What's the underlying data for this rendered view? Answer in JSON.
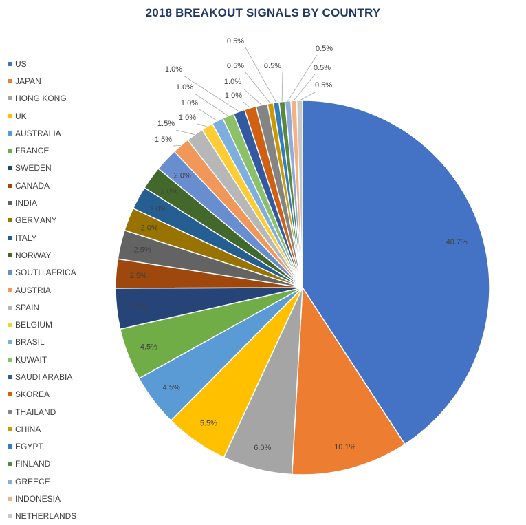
{
  "chart_data": {
    "type": "pie",
    "title": "2018 BREAKOUT SIGNALS BY COUNTRY",
    "legend_position": "left",
    "series": [
      {
        "name": "",
        "slices": [
          {
            "label": "US",
            "value": 40.7,
            "data_label": "40.7%",
            "color": "#4472c4"
          },
          {
            "label": "JAPAN",
            "value": 10.1,
            "data_label": "10.1%",
            "color": "#ed7d31"
          },
          {
            "label": "HONG KONG",
            "value": 6.0,
            "data_label": "6.0%",
            "color": "#a5a5a5"
          },
          {
            "label": "UK",
            "value": 5.5,
            "data_label": "5.5%",
            "color": "#ffc000"
          },
          {
            "label": "AUSTRALIA",
            "value": 4.5,
            "data_label": "4.5%",
            "color": "#5b9bd5"
          },
          {
            "label": "FRANCE",
            "value": 4.5,
            "data_label": "4.5%",
            "color": "#70ad47"
          },
          {
            "label": "SWEDEN",
            "value": 3.5,
            "data_label": "3.5%",
            "color": "#264478"
          },
          {
            "label": "CANADA",
            "value": 2.5,
            "data_label": "2.5%",
            "color": "#9e480e"
          },
          {
            "label": "INDIA",
            "value": 2.5,
            "data_label": "2.5%",
            "color": "#636363"
          },
          {
            "label": "GERMANY",
            "value": 2.0,
            "data_label": "2.0%",
            "color": "#997300"
          },
          {
            "label": "ITALY",
            "value": 2.0,
            "data_label": "2.0%",
            "color": "#255e91"
          },
          {
            "label": "NORWAY",
            "value": 2.0,
            "data_label": "2.0%",
            "color": "#43682b"
          },
          {
            "label": "SOUTH AFRICA",
            "value": 2.0,
            "data_label": "2.0%",
            "color": "#698ed0"
          },
          {
            "label": "AUSTRIA",
            "value": 1.5,
            "data_label": "1.5%",
            "color": "#f1975a"
          },
          {
            "label": "SPAIN",
            "value": 1.5,
            "data_label": "1.5%",
            "color": "#b7b7b7"
          },
          {
            "label": "BELGIUM",
            "value": 1.0,
            "data_label": "1.0%",
            "color": "#ffcd33"
          },
          {
            "label": "BRASIL",
            "value": 1.0,
            "data_label": "1.0%",
            "color": "#7cafdd"
          },
          {
            "label": "KUWAIT",
            "value": 1.0,
            "data_label": "1.0%",
            "color": "#8cc168"
          },
          {
            "label": "SAUDI ARABIA",
            "value": 1.0,
            "data_label": "1.0%",
            "color": "#335aa1"
          },
          {
            "label": "SKOREA",
            "value": 1.0,
            "data_label": "1.0%",
            "color": "#d26012"
          },
          {
            "label": "THAILAND",
            "value": 1.0,
            "data_label": "1.0%",
            "color": "#848484"
          },
          {
            "label": "CHINA",
            "value": 0.5,
            "data_label": "0.5%",
            "color": "#cc9a00"
          },
          {
            "label": "EGYPT",
            "value": 0.5,
            "data_label": "0.5%",
            "color": "#327dc2"
          },
          {
            "label": "FINLAND",
            "value": 0.5,
            "data_label": "0.5%",
            "color": "#5a8a39"
          },
          {
            "label": "GREECE",
            "value": 0.5,
            "data_label": "0.5%",
            "color": "#8faadc"
          },
          {
            "label": "INDONESIA",
            "value": 0.5,
            "data_label": "0.5%",
            "color": "#f4b183"
          },
          {
            "label": "NETHERLANDS",
            "value": 0.5,
            "data_label": "0.5%",
            "color": "#c9c9c9"
          }
        ]
      }
    ]
  }
}
